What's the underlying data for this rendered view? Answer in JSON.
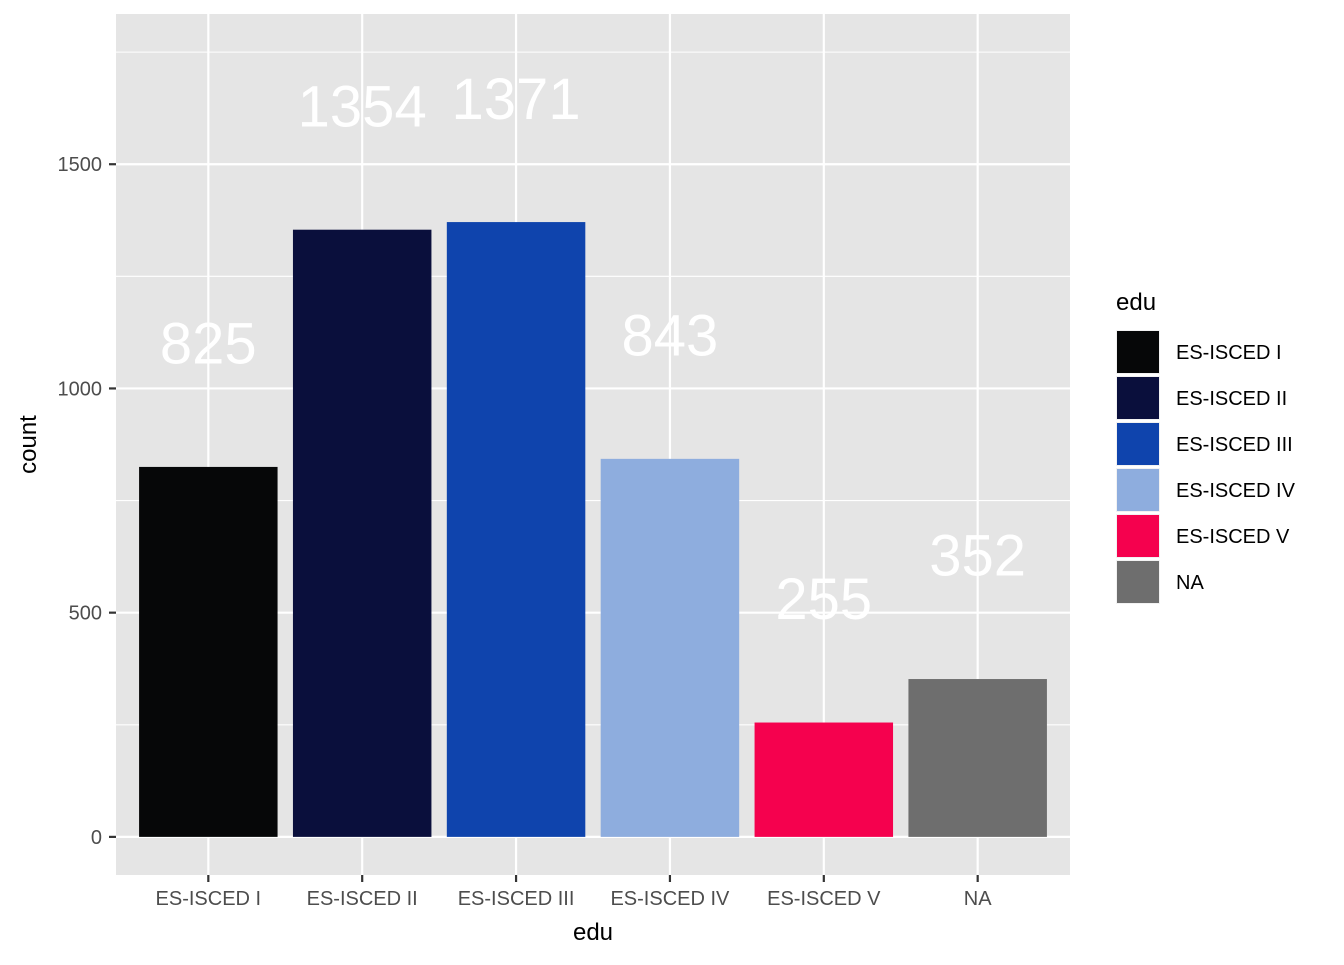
{
  "chart_data": {
    "type": "bar",
    "categories": [
      "ES-ISCED I",
      "ES-ISCED II",
      "ES-ISCED III",
      "ES-ISCED IV",
      "ES-ISCED V",
      "NA"
    ],
    "values": [
      825,
      1354,
      1371,
      843,
      255,
      352
    ],
    "data_labels": [
      "825",
      "1354",
      "1371",
      "843",
      "255",
      "352"
    ],
    "colors": [
      "#060708",
      "#0a0f3c",
      "#0f44ad",
      "#8eadde",
      "#f5014e",
      "#6e6e6e"
    ],
    "xlabel": "edu",
    "ylabel": "count",
    "ylim": [
      -85,
      1835
    ],
    "yticks": [
      0,
      500,
      1000,
      1500
    ],
    "ytick_labels": [
      "0",
      "500",
      "1000",
      "1500"
    ],
    "grid": true,
    "panel_background": "#e5e5e5",
    "grid_color": "#ffffff",
    "label_color": "#ffffff",
    "legend": {
      "title": "edu",
      "placement": "right",
      "entries": [
        "ES-ISCED I",
        "ES-ISCED II",
        "ES-ISCED III",
        "ES-ISCED IV",
        "ES-ISCED V",
        "NA"
      ]
    }
  }
}
